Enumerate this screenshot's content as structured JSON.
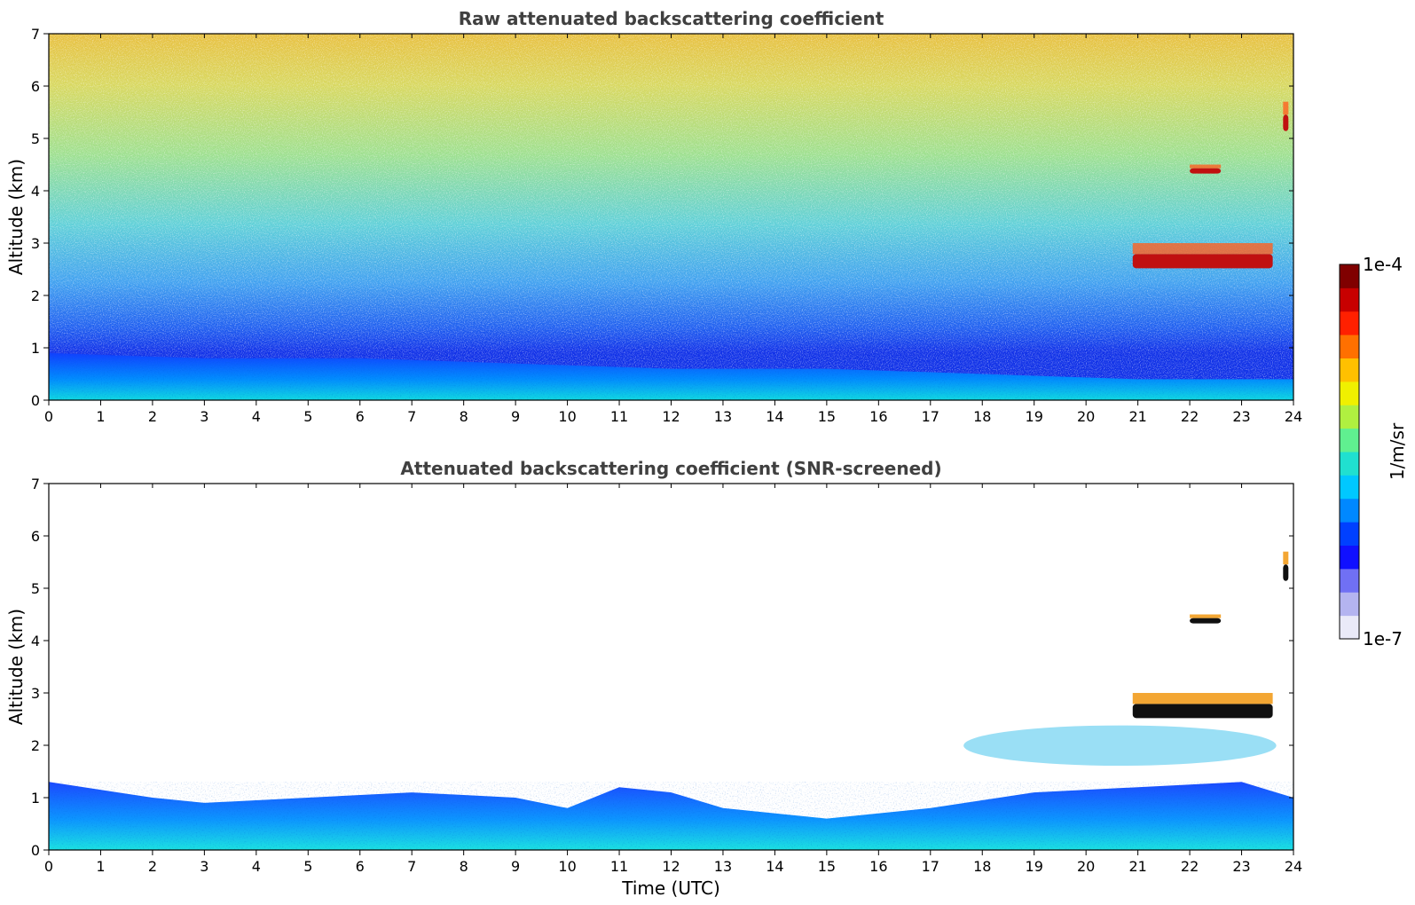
{
  "chart_data": [
    {
      "type": "heatmap",
      "title": "Raw attenuated backscattering coefficient",
      "xlabel": "",
      "ylabel": "Altitude (km)",
      "xlim": [
        0,
        24
      ],
      "ylim": [
        0,
        7
      ],
      "xticks": [
        "0",
        "1",
        "2",
        "3",
        "4",
        "5",
        "6",
        "7",
        "8",
        "9",
        "10",
        "11",
        "12",
        "13",
        "14",
        "15",
        "16",
        "17",
        "18",
        "19",
        "20",
        "21",
        "22",
        "23",
        "24"
      ],
      "yticks": [
        "0",
        "1",
        "2",
        "3",
        "4",
        "5",
        "6",
        "7"
      ],
      "features": [
        {
          "name": "boundary-layer aerosol",
          "x_range": [
            0,
            24
          ],
          "top_km_at_hours": [
            [
              0,
              0.9
            ],
            [
              3,
              0.8
            ],
            [
              6,
              0.8
            ],
            [
              9,
              0.7
            ],
            [
              12,
              0.6
            ],
            [
              15,
              0.6
            ],
            [
              18,
              0.5
            ],
            [
              21,
              0.4
            ],
            [
              24,
              0.4
            ]
          ]
        },
        {
          "name": "cloud layer",
          "x_range": [
            20.9,
            23.6
          ],
          "altitude_km": [
            2.4,
            3.0
          ]
        },
        {
          "name": "cloud layer",
          "x_range": [
            22.0,
            22.6
          ],
          "altitude_km": [
            4.3,
            4.5
          ]
        },
        {
          "name": "cloud layer",
          "x_range": [
            23.8,
            23.9
          ],
          "altitude_km": [
            5.0,
            5.7
          ]
        }
      ]
    },
    {
      "type": "heatmap",
      "title": "Attenuated backscattering coefficient (SNR-screened)",
      "xlabel": "Time (UTC)",
      "ylabel": "Altitude (km)",
      "xlim": [
        0,
        24
      ],
      "ylim": [
        0,
        7
      ],
      "xticks": [
        "0",
        "1",
        "2",
        "3",
        "4",
        "5",
        "6",
        "7",
        "8",
        "9",
        "10",
        "11",
        "12",
        "13",
        "14",
        "15",
        "16",
        "17",
        "18",
        "19",
        "20",
        "21",
        "22",
        "23",
        "24"
      ],
      "yticks": [
        "0",
        "1",
        "2",
        "3",
        "4",
        "5",
        "6",
        "7"
      ],
      "features": [
        {
          "name": "boundary-layer aerosol",
          "x_range": [
            0,
            24
          ],
          "top_km_at_hours": [
            [
              0,
              1.3
            ],
            [
              2,
              1.0
            ],
            [
              3,
              0.9
            ],
            [
              5,
              1.0
            ],
            [
              7,
              1.1
            ],
            [
              9,
              1.0
            ],
            [
              10,
              0.8
            ],
            [
              11,
              1.2
            ],
            [
              12,
              1.1
            ],
            [
              13,
              0.8
            ],
            [
              15,
              0.6
            ],
            [
              17,
              0.8
            ],
            [
              19,
              1.1
            ],
            [
              21,
              1.2
            ],
            [
              23,
              1.3
            ],
            [
              24,
              1.0
            ]
          ]
        },
        {
          "name": "elevated aerosol",
          "x_range": [
            16.5,
            23.2
          ],
          "altitude_km": [
            1.5,
            2.6
          ]
        },
        {
          "name": "cloud layer",
          "x_range": [
            20.9,
            23.6
          ],
          "altitude_km": [
            2.4,
            3.0
          ]
        },
        {
          "name": "cloud layer",
          "x_range": [
            22.0,
            22.6
          ],
          "altitude_km": [
            4.3,
            4.5
          ]
        },
        {
          "name": "cloud layer",
          "x_range": [
            23.8,
            23.9
          ],
          "altitude_km": [
            5.0,
            5.7
          ]
        }
      ]
    }
  ],
  "colorbar": {
    "label": "1/m/sr",
    "min_label": "1e-7",
    "max_label": "1e-4",
    "scale": "log",
    "colors": [
      "#eaeaf8",
      "#b4b4f0",
      "#7070f4",
      "#1010ff",
      "#0040ff",
      "#0088ff",
      "#00c8ff",
      "#20e0d0",
      "#60f090",
      "#b0f040",
      "#f0f000",
      "#ffc000",
      "#ff7000",
      "#ff2000",
      "#c80000",
      "#800000"
    ]
  }
}
